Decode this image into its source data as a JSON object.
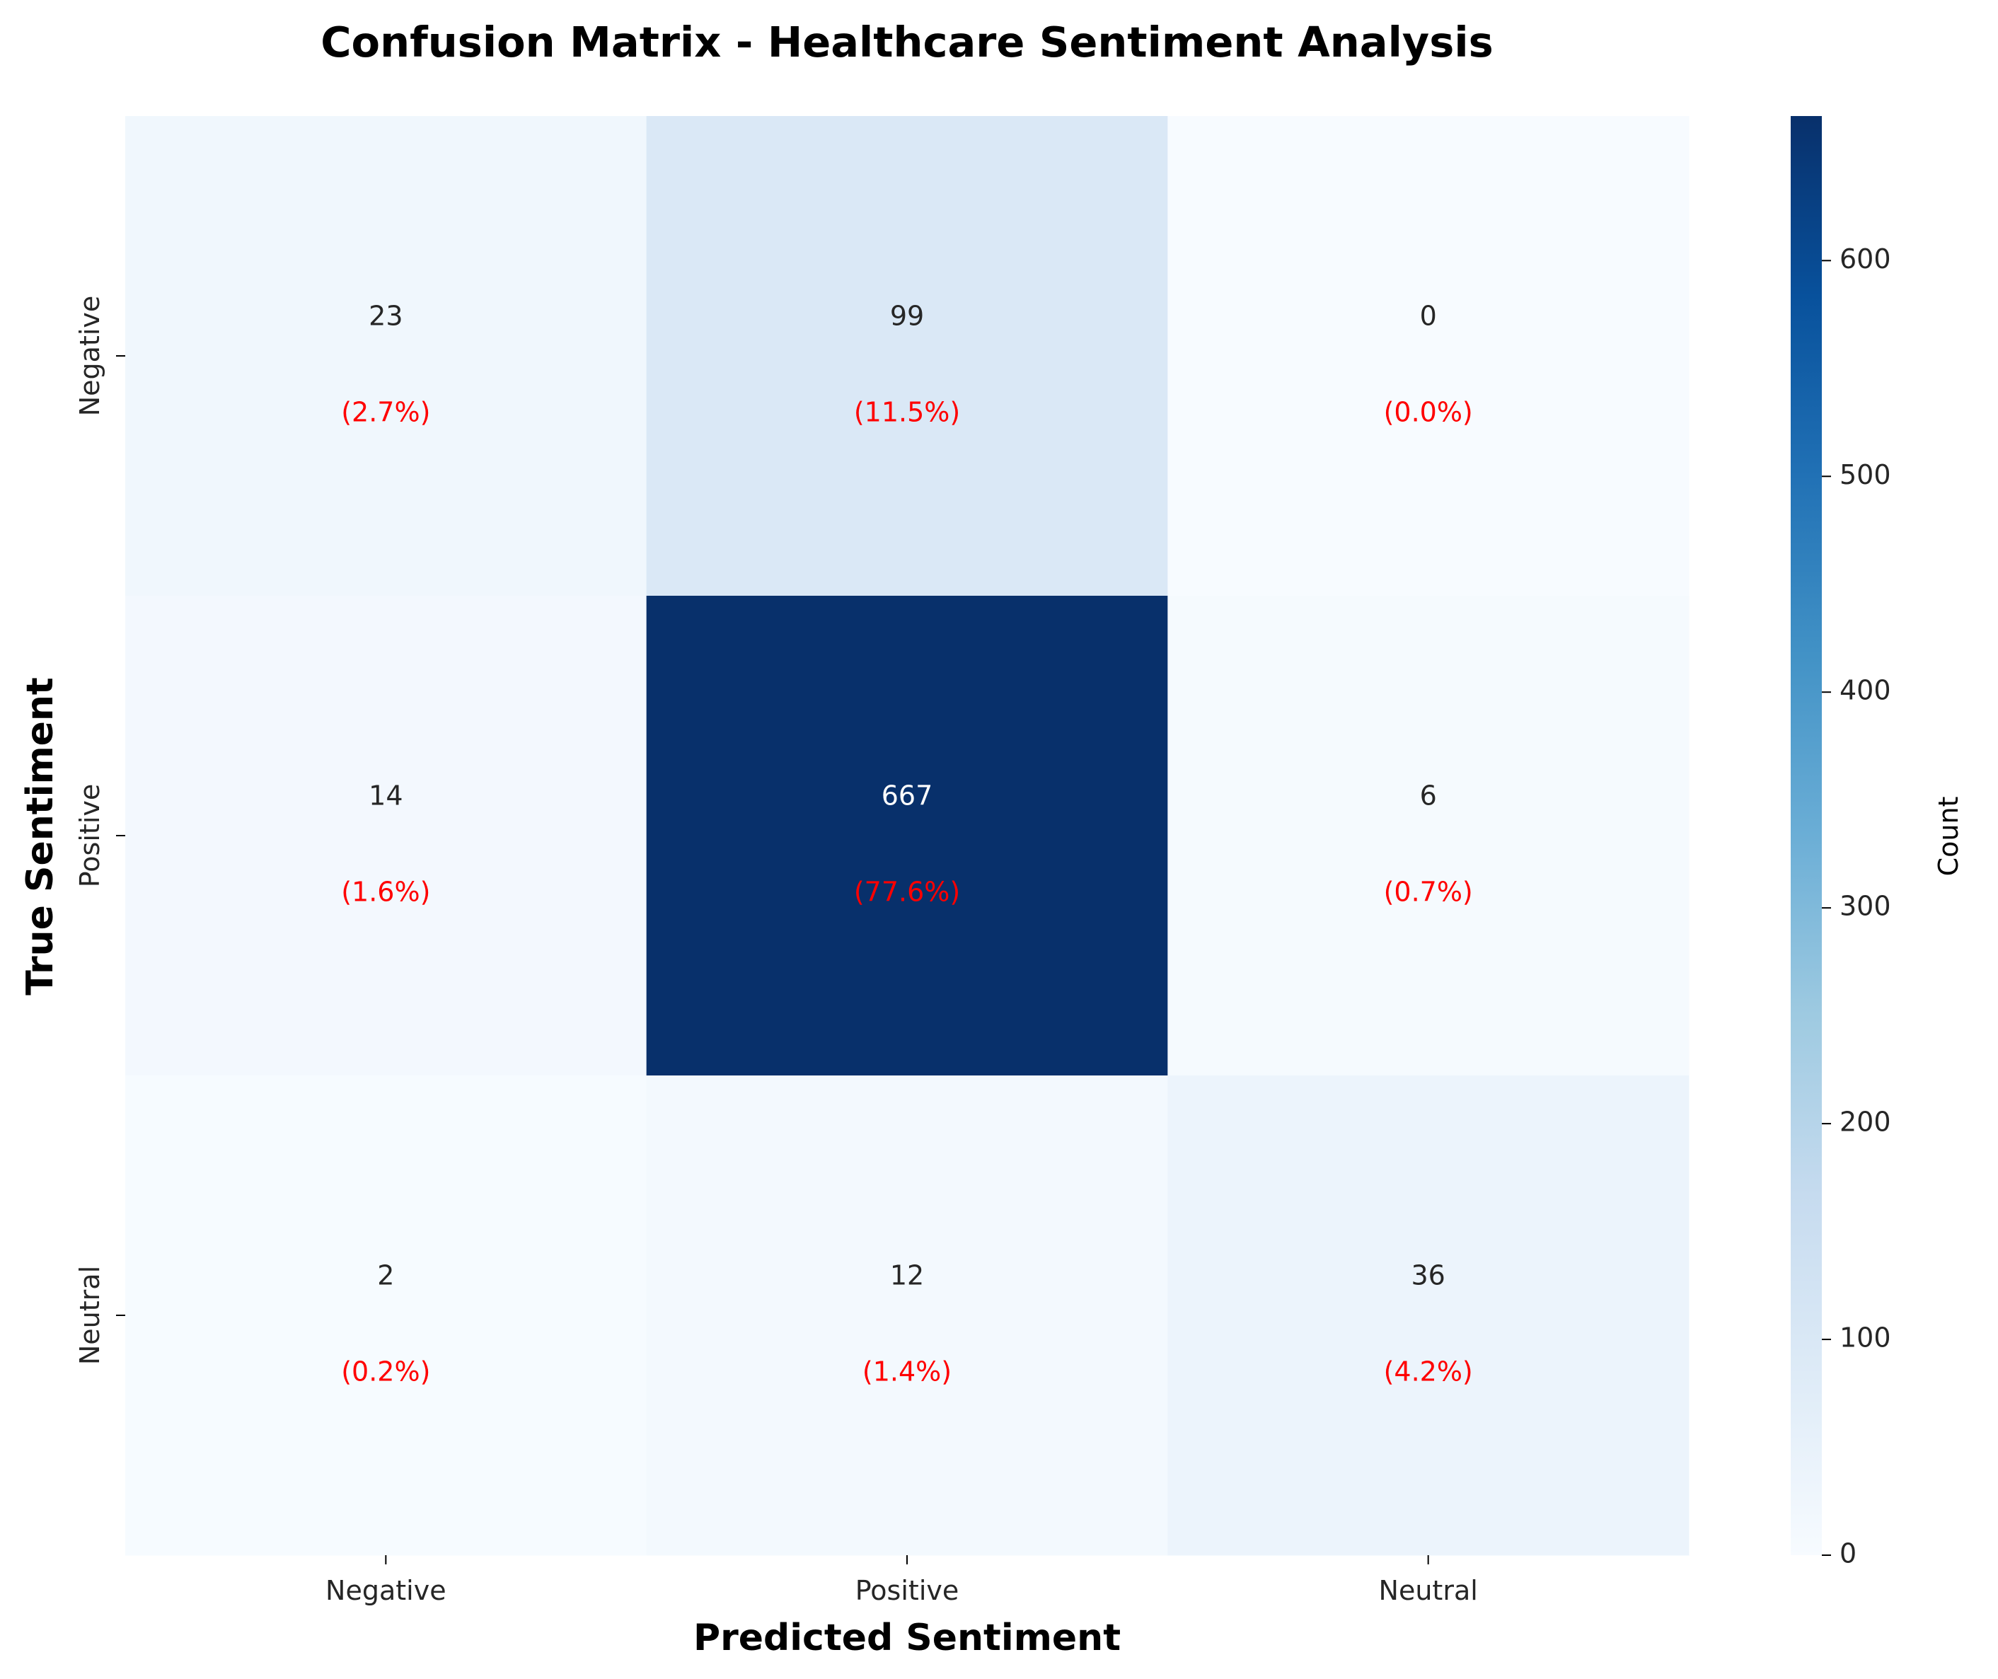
{
  "chart_data": {
    "type": "heatmap",
    "title": "Confusion Matrix - Healthcare Sentiment Analysis",
    "xlabel": "Predicted Sentiment",
    "ylabel": "True Sentiment",
    "x_categories": [
      "Negative",
      "Positive",
      "Neutral"
    ],
    "y_categories": [
      "Negative",
      "Positive",
      "Neutral"
    ],
    "values": [
      [
        23,
        99,
        0
      ],
      [
        14,
        667,
        6
      ],
      [
        2,
        12,
        36
      ]
    ],
    "percent_labels": [
      [
        "(2.7%)",
        "(11.5%)",
        "(0.0%)"
      ],
      [
        "(1.6%)",
        "(77.6%)",
        "(0.7%)"
      ],
      [
        "(0.2%)",
        "(1.4%)",
        "(4.2%)"
      ]
    ],
    "percent_color": "#ff0000",
    "colormap": "Blues",
    "colorbar": {
      "label": "Count",
      "range": [
        0,
        667
      ],
      "ticks": [
        0,
        100,
        200,
        300,
        400,
        500,
        600
      ]
    }
  }
}
